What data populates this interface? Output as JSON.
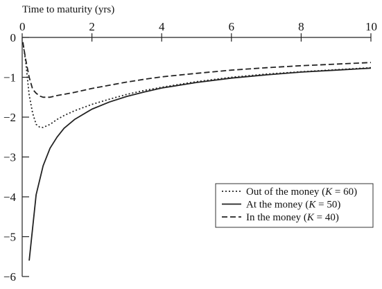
{
  "chart_data": {
    "type": "line",
    "title": "",
    "xlabel": "Time to maturity (yrs)",
    "ylabel": "",
    "xlim": [
      0,
      10
    ],
    "ylim": [
      -6,
      0
    ],
    "x_ticks": [
      0,
      2,
      4,
      6,
      8,
      10
    ],
    "x_tick_labels": [
      "0",
      "2",
      "4",
      "6",
      "8",
      "10"
    ],
    "y_ticks": [
      0,
      -1,
      -2,
      -3,
      -4,
      -5,
      -6
    ],
    "y_tick_labels": [
      "0",
      "−1",
      "−2",
      "−3",
      "−4",
      "−5",
      "−6"
    ],
    "x_axis_position": "top",
    "grid": false,
    "legend_position": "bottom-right",
    "series": [
      {
        "name": "Out of the money (K = 60)",
        "legend_prefix": "Out of the money (",
        "legend_var": "K",
        "legend_suffix": " = 60)",
        "style": "dotted",
        "points": [
          [
            0.02,
            -0.12
          ],
          [
            0.1,
            -0.6
          ],
          [
            0.2,
            -1.45
          ],
          [
            0.3,
            -1.9
          ],
          [
            0.4,
            -2.18
          ],
          [
            0.5,
            -2.25
          ],
          [
            0.6,
            -2.26
          ],
          [
            0.8,
            -2.18
          ],
          [
            1.0,
            -2.06
          ],
          [
            1.2,
            -1.96
          ],
          [
            1.5,
            -1.84
          ],
          [
            2.0,
            -1.68
          ],
          [
            2.5,
            -1.55
          ],
          [
            3.0,
            -1.43
          ],
          [
            3.5,
            -1.33
          ],
          [
            4.0,
            -1.25
          ],
          [
            5.0,
            -1.11
          ],
          [
            6.0,
            -1.0
          ],
          [
            7.0,
            -0.92
          ],
          [
            8.0,
            -0.86
          ],
          [
            9.0,
            -0.81
          ],
          [
            10.0,
            -0.76
          ]
        ]
      },
      {
        "name": "At the money (K = 50)",
        "legend_prefix": "At the money (",
        "legend_var": "K",
        "legend_suffix": " = 50)",
        "style": "solid",
        "points": [
          [
            0.2,
            -5.6
          ],
          [
            0.4,
            -3.95
          ],
          [
            0.6,
            -3.22
          ],
          [
            0.8,
            -2.78
          ],
          [
            1.0,
            -2.5
          ],
          [
            1.2,
            -2.28
          ],
          [
            1.5,
            -2.06
          ],
          [
            2.0,
            -1.8
          ],
          [
            2.5,
            -1.62
          ],
          [
            3.0,
            -1.48
          ],
          [
            3.5,
            -1.37
          ],
          [
            4.0,
            -1.27
          ],
          [
            5.0,
            -1.13
          ],
          [
            6.0,
            -1.02
          ],
          [
            7.0,
            -0.94
          ],
          [
            8.0,
            -0.87
          ],
          [
            9.0,
            -0.82
          ],
          [
            10.0,
            -0.77
          ]
        ]
      },
      {
        "name": "In the money (K = 40)",
        "legend_prefix": "In the money (",
        "legend_var": "K",
        "legend_suffix": " = 40)",
        "style": "dashed",
        "points": [
          [
            0.02,
            -0.12
          ],
          [
            0.1,
            -0.55
          ],
          [
            0.2,
            -1.0
          ],
          [
            0.3,
            -1.3
          ],
          [
            0.4,
            -1.4
          ],
          [
            0.5,
            -1.47
          ],
          [
            0.6,
            -1.5
          ],
          [
            0.8,
            -1.5
          ],
          [
            1.0,
            -1.46
          ],
          [
            1.5,
            -1.38
          ],
          [
            2.0,
            -1.28
          ],
          [
            2.5,
            -1.2
          ],
          [
            3.0,
            -1.12
          ],
          [
            3.5,
            -1.05
          ],
          [
            4.0,
            -0.99
          ],
          [
            5.0,
            -0.9
          ],
          [
            6.0,
            -0.82
          ],
          [
            7.0,
            -0.76
          ],
          [
            8.0,
            -0.71
          ],
          [
            9.0,
            -0.67
          ],
          [
            10.0,
            -0.63
          ]
        ]
      }
    ]
  }
}
